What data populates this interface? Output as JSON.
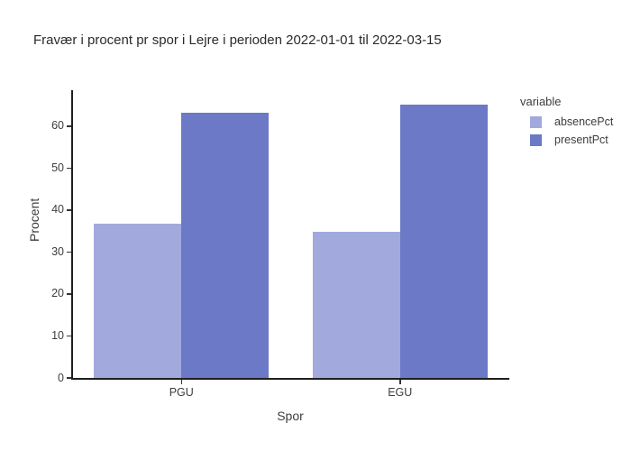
{
  "title": "Fravær i procent pr spor i Lejre i perioden 2022-01-01 til 2022-03-15",
  "chart_data": {
    "type": "bar",
    "bar_mode": "group",
    "categories": [
      "PGU",
      "EGU"
    ],
    "series": [
      {
        "name": "absencePct",
        "color": "#a2a9dd",
        "values": [
          36.8,
          34.9
        ]
      },
      {
        "name": "presentPct",
        "color": "#6b79c6",
        "values": [
          63.2,
          65.1
        ]
      }
    ],
    "title": "Fravær i procent pr spor i Lejre i perioden 2022-01-01 til 2022-03-15",
    "xlabel": "Spor",
    "ylabel": "Procent",
    "ylim": [
      0,
      68.6
    ],
    "yticks": [
      0,
      10,
      20,
      30,
      40,
      50,
      60
    ],
    "grid": false,
    "legend_title": "variable",
    "legend_position": "right"
  },
  "colors": {
    "background": "#ffffff",
    "axis_line": "#1f1f1f",
    "tick_text": "#3d3d3d",
    "title_text": "#2b2b2b"
  }
}
